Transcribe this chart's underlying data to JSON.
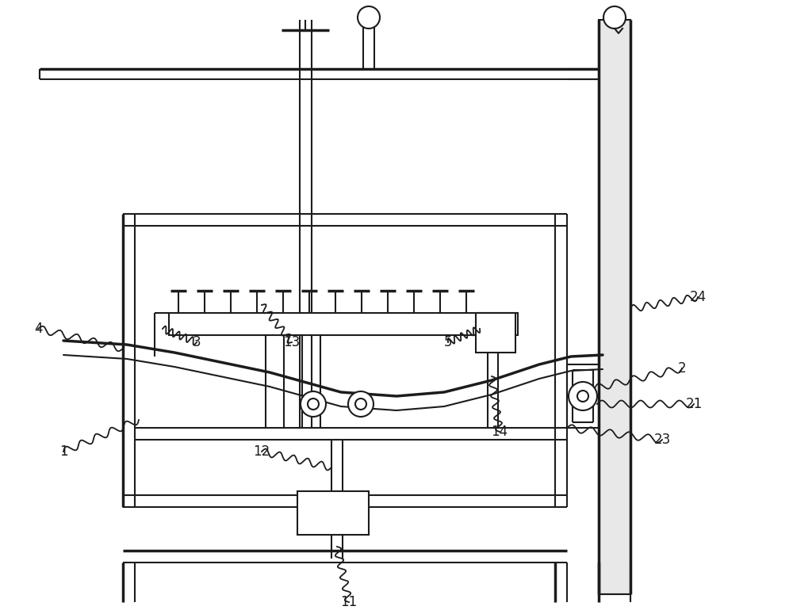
{
  "bg_color": "#ffffff",
  "lc": "#1c1c1c",
  "lw": 1.5,
  "tlw": 2.5,
  "figsize": [
    10.0,
    7.75
  ]
}
